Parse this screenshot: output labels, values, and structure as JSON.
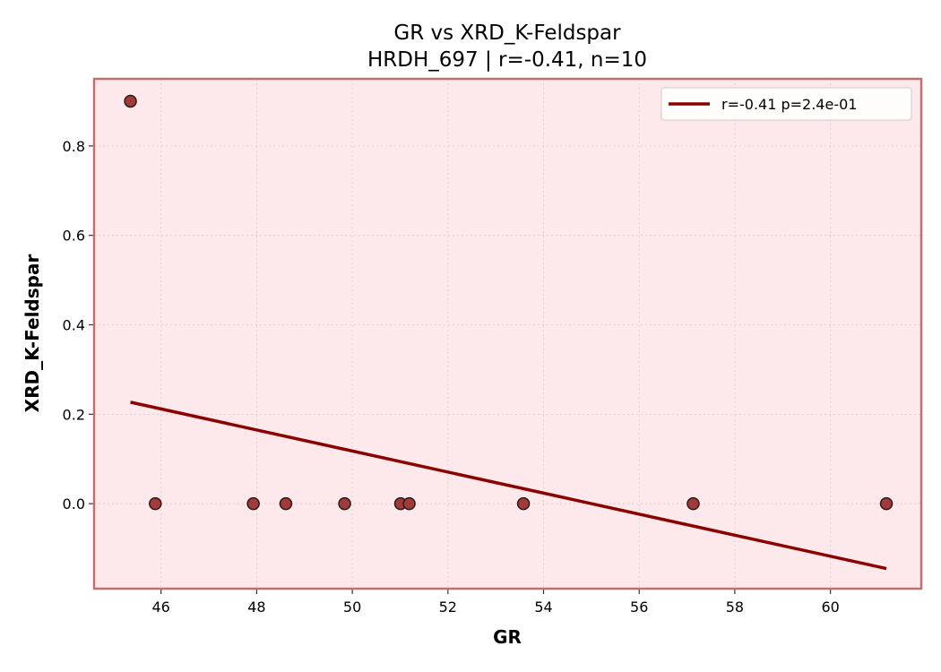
{
  "chart_data": {
    "type": "scatter",
    "title": "GR vs XRD_K-Feldspar",
    "subtitle": "HRDH_697 | r=-0.41, n=10",
    "xlabel": "GR",
    "ylabel": "XRD_K-Feldspar",
    "xlim": [
      44.6,
      61.9
    ],
    "ylim": [
      -0.19,
      0.95
    ],
    "xticks": [
      46,
      48,
      50,
      52,
      54,
      56,
      58,
      60
    ],
    "yticks": [
      0.0,
      0.2,
      0.4,
      0.6,
      0.8
    ],
    "xtick_labels": [
      "46",
      "48",
      "50",
      "52",
      "54",
      "56",
      "58",
      "60"
    ],
    "ytick_labels": [
      "0.0",
      "0.2",
      "0.4",
      "0.6",
      "0.8"
    ],
    "grid": true,
    "legend_position": "top-right",
    "series": [
      {
        "kind": "points",
        "x": [
          45.36,
          45.88,
          47.93,
          48.61,
          49.84,
          51.01,
          51.19,
          53.58,
          57.13,
          61.17
        ],
        "y": [
          0.9,
          0.0,
          0.0,
          0.0,
          0.0,
          0.0,
          0.0,
          0.0,
          0.0,
          0.0
        ]
      },
      {
        "kind": "line",
        "name": "r=-0.41  p=2.4e-01",
        "x": [
          45.36,
          61.17
        ],
        "y": [
          0.227,
          -0.145
        ]
      }
    ],
    "colors": {
      "plot_bg": "#fde9ec",
      "frame": "#c07070",
      "points_fill": "#a33a3a",
      "points_edge": "#2a1a1a",
      "fit_line": "#8b0000",
      "grid": "#d9c9cc"
    }
  }
}
